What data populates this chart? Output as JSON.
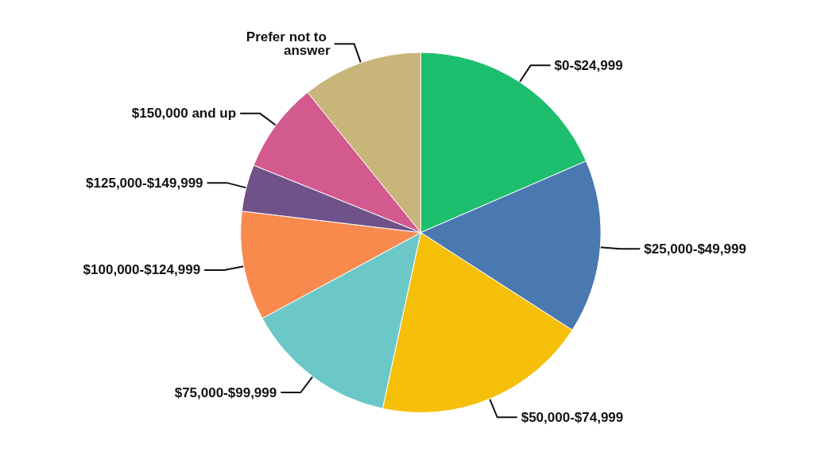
{
  "chart_data": {
    "type": "pie",
    "categories": [
      "$0-$24,999",
      "$25,000-$49,999",
      "$50,000-$74,999",
      "$75,000-$99,999",
      "$100,000-$124,999",
      "$125,000-$149,999",
      "$150,000 and up",
      "Prefer not to answer"
    ],
    "values": [
      18.5,
      15.6,
      19.3,
      13.7,
      9.8,
      4.2,
      8.1,
      10.8
    ],
    "colors": [
      "#1dbf6e",
      "#4a78b0",
      "#f5bf0a",
      "#6cc8c8",
      "#f98a4e",
      "#6f5289",
      "#d25a8e",
      "#c7b57a"
    ],
    "legend": false
  }
}
